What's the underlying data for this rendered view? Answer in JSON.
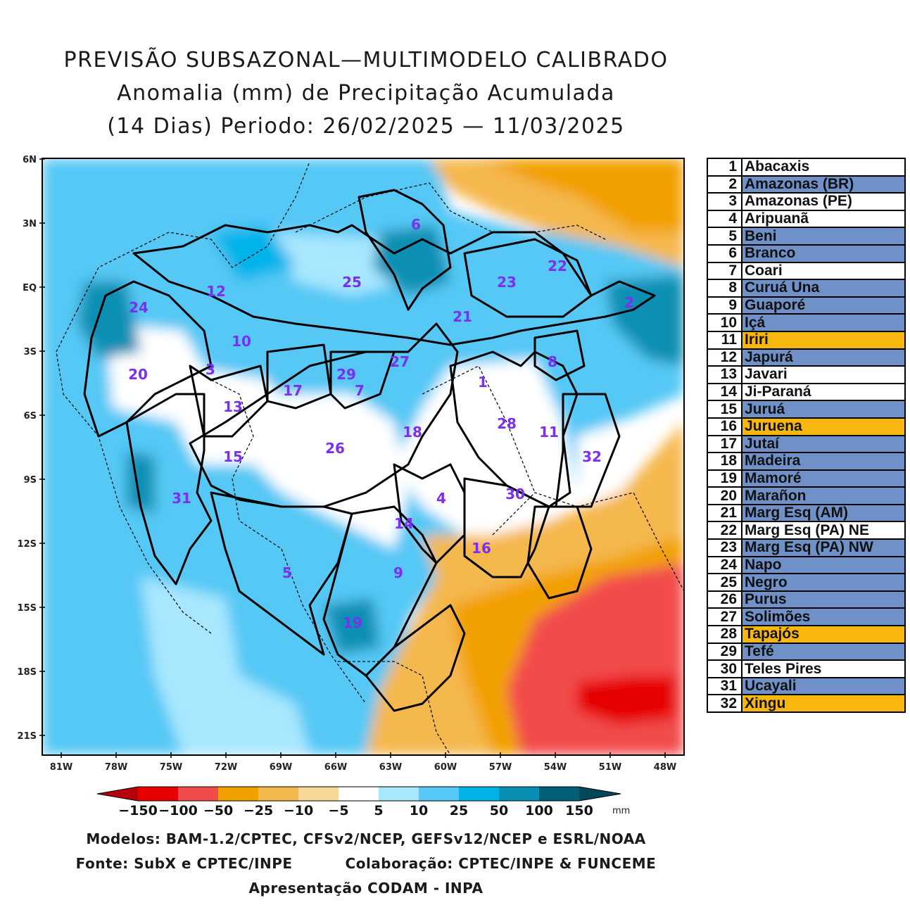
{
  "title": {
    "line1": "PREVISÃO SUBSAZONAL—MULTIMODELO CALIBRADO",
    "line2": "Anomalia (mm) de Precipitação Acumulada",
    "line3": "(14 Dias) Periodo: 26/02/2025 — 11/03/2025"
  },
  "axes": {
    "lat_labels": [
      "6N",
      "3N",
      "EQ",
      "3S",
      "6S",
      "9S",
      "12S",
      "15S",
      "18S",
      "21S"
    ],
    "lon_labels": [
      "81W",
      "78W",
      "75W",
      "72W",
      "69W",
      "66W",
      "63W",
      "60W",
      "57W",
      "54W",
      "51W",
      "48W"
    ]
  },
  "colorbar": {
    "labels": [
      "−150",
      "−100",
      "−50",
      "−25",
      "−10",
      "−5",
      "5",
      "10",
      "25",
      "50",
      "100",
      "150"
    ],
    "unit": "mm",
    "colors": [
      "#b5000c",
      "#e60000",
      "#f24b4b",
      "#f2a000",
      "#f5b84e",
      "#f9d797",
      "#ffffff",
      "#a8e7ff",
      "#55c8f5",
      "#00b4eb",
      "#0a8fb4",
      "#045f78",
      "#03485a"
    ]
  },
  "basins": [
    {
      "num": "1",
      "name": "Abacaxis",
      "color": "#ffffff"
    },
    {
      "num": "2",
      "name": "Amazonas (BR)",
      "color": "#6f91c7"
    },
    {
      "num": "3",
      "name": "Amazonas (PE)",
      "color": "#ffffff"
    },
    {
      "num": "4",
      "name": "Aripuanã",
      "color": "#ffffff"
    },
    {
      "num": "5",
      "name": "Beni",
      "color": "#6f91c7"
    },
    {
      "num": "6",
      "name": "Branco",
      "color": "#6f91c7"
    },
    {
      "num": "7",
      "name": "Coari",
      "color": "#ffffff"
    },
    {
      "num": "8",
      "name": "Curuá Una",
      "color": "#6f91c7"
    },
    {
      "num": "9",
      "name": "Guaporé",
      "color": "#6f91c7"
    },
    {
      "num": "10",
      "name": "Içá",
      "color": "#6f91c7"
    },
    {
      "num": "11",
      "name": "Iriri",
      "color": "#f7b70e"
    },
    {
      "num": "12",
      "name": "Japurá",
      "color": "#6f91c7"
    },
    {
      "num": "13",
      "name": "Javari",
      "color": "#ffffff"
    },
    {
      "num": "14",
      "name": "Ji-Paraná",
      "color": "#ffffff"
    },
    {
      "num": "15",
      "name": "Juruá",
      "color": "#6f91c7"
    },
    {
      "num": "16",
      "name": "Juruena",
      "color": "#f7b70e"
    },
    {
      "num": "17",
      "name": "Jutaí",
      "color": "#6f91c7"
    },
    {
      "num": "18",
      "name": "Madeira",
      "color": "#6f91c7"
    },
    {
      "num": "19",
      "name": "Mamoré",
      "color": "#6f91c7"
    },
    {
      "num": "20",
      "name": "Marañon",
      "color": "#6f91c7"
    },
    {
      "num": "21",
      "name": "Marg Esq (AM)",
      "color": "#6f91c7"
    },
    {
      "num": "22",
      "name": "Marg Esq (PA) NE",
      "color": "#ffffff"
    },
    {
      "num": "23",
      "name": "Marg Esq (PA) NW",
      "color": "#6f91c7"
    },
    {
      "num": "24",
      "name": "Napo",
      "color": "#6f91c7"
    },
    {
      "num": "25",
      "name": "Negro",
      "color": "#6f91c7"
    },
    {
      "num": "26",
      "name": "Purus",
      "color": "#6f91c7"
    },
    {
      "num": "27",
      "name": "Solimões",
      "color": "#6f91c7"
    },
    {
      "num": "28",
      "name": "Tapajós",
      "color": "#f7b70e"
    },
    {
      "num": "29",
      "name": "Tefé",
      "color": "#6f91c7"
    },
    {
      "num": "30",
      "name": "Teles Pires",
      "color": "#ffffff"
    },
    {
      "num": "31",
      "name": "Ucayali",
      "color": "#6f91c7"
    },
    {
      "num": "32",
      "name": "Xingu",
      "color": "#f7b70e"
    }
  ],
  "footer": {
    "models": "Modelos: BAM-1.2/CPTEC, CFSv2/NCEP, GEFSv12/NCEP e ESRL/NOAA",
    "source": "Fonte: SubX e CPTEC/INPE",
    "collab": "Colaboração: CPTEC/INPE & FUNCEME",
    "presentation": "Apresentação CODAM - INPA"
  }
}
